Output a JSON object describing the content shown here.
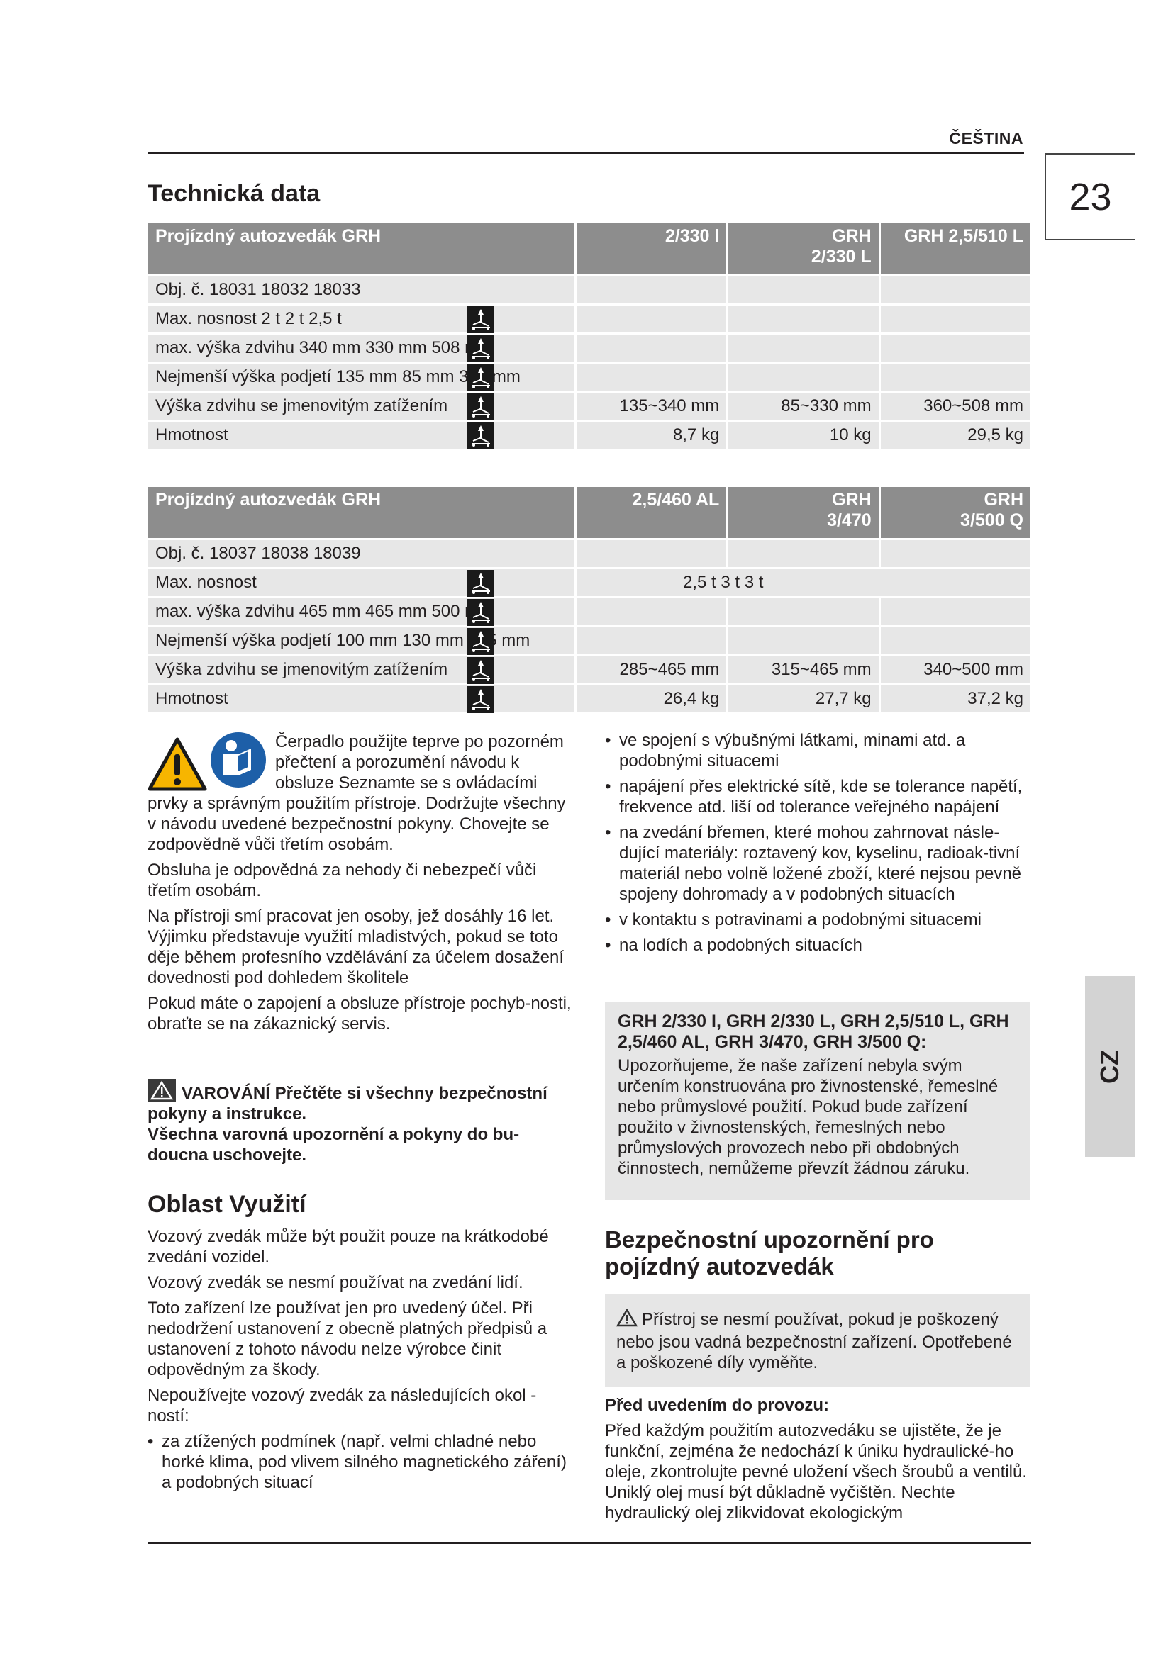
{
  "header": {
    "language": "ČEŠTINA",
    "page_number": "23",
    "side_tab": "CZ"
  },
  "title": "Technická data",
  "table1": {
    "headers": [
      [
        "Projízdný autozvedák GRH",
        ""
      ],
      [
        "",
        "2/330 l"
      ],
      [
        "GRH",
        "2/330 L"
      ],
      [
        "GRH 2,5/510 L",
        ""
      ]
    ],
    "rows": [
      {
        "label": "Obj. č. 18031 18032 18033",
        "icon": "",
        "values": [
          "",
          "",
          ""
        ]
      },
      {
        "label": "Max. nosnost 2 t 2 t 2,5 t",
        "icon": "load-capacity-icon",
        "values": [
          "",
          "",
          ""
        ]
      },
      {
        "label": "max. výška zdvihu 340 mm 330 mm 508 mm",
        "icon": "max-lift-height-icon",
        "values": [
          "",
          "",
          ""
        ]
      },
      {
        "label": "Nejmenší výška podjetí 135 mm 85 mm 360 mm",
        "icon": "min-height-icon",
        "values": [
          "",
          "",
          ""
        ]
      },
      {
        "label": "Výška zdvihu se jmenovitým zatížením",
        "icon": "lift-range-icon",
        "values": [
          "135~340 mm",
          "85~330 mm",
          "360~508 mm"
        ]
      },
      {
        "label": "Hmotnost",
        "icon": "weight-icon",
        "values": [
          "8,7 kg",
          "10 kg",
          "29,5 kg"
        ]
      }
    ]
  },
  "table2": {
    "headers": [
      [
        "Projízdný autozvedák GRH",
        ""
      ],
      [
        "",
        "2,5/460 AL"
      ],
      [
        "GRH",
        "3/470"
      ],
      [
        "GRH",
        "3/500 Q"
      ]
    ],
    "rows": [
      {
        "label": "Obj. č. 18037 18038 18039",
        "icon": "",
        "values": [
          "",
          "",
          ""
        ]
      },
      {
        "label": "Max. nosnost",
        "icon": "load-capacity-icon",
        "values": [
          "2,5 t 3 t 3 t"
        ]
      },
      {
        "label": "max. výška zdvihu 465 mm 465 mm 500 mm",
        "icon": "max-lift-height-icon",
        "values": [
          "",
          "",
          ""
        ]
      },
      {
        "label": "Nejmenší výška podjetí 100 mm 130 mm 145 mm",
        "icon": "min-height-icon",
        "values": [
          "",
          "",
          ""
        ]
      },
      {
        "label": "Výška zdvihu se jmenovitým zatížením",
        "icon": "lift-range-icon",
        "values": [
          "285~465 mm",
          "315~465 mm",
          "340~500 mm"
        ]
      },
      {
        "label": "Hmotnost",
        "icon": "weight-icon",
        "values": [
          "26,4 kg",
          "27,7 kg",
          "37,2 kg"
        ]
      }
    ]
  },
  "left": {
    "intro": "Čerpadlo použijte teprve po pozorném přečtení a porozumění návodu k obsluze Seznamte se s ovládacími prvky a správným použitím přístroje. Dodržujte všechny v návodu uvedené bezpečnostní pokyny. Chovejte se zodpovědně vůči třetím osobám.",
    "p1": "Obsluha je odpovědná za nehody či nebezpečí vůči třetím osobám.",
    "p2": "Na přístroji smí pracovat jen osoby, jež dosáhly 16 let. Výjimku představuje využití mladistvých, pokud se toto děje během profesního vzdělávání za účelem dosažení dovednosti pod dohledem školitele",
    "p3": "Pokud máte o zapojení a obsluze přístroje pochyb-nosti, obraťte se na zákaznický servis.",
    "warning_label": "VAROVÁNÍ",
    "warning_text": "Přečtěte si všechny bezpečnostní pokyny a instrukce.",
    "warning_text2": "Všechna varovná upozornění a pokyny do bu-doucna uschovejte.",
    "usage_heading": "Oblast Využití",
    "u1": "Vozový zvedák může být použit pouze na krátkodobé zvedání vozidel.",
    "u2": "Vozový zvedák se nesmí používat na zvedání lidí.",
    "u3": "Toto zařízení lze používat jen pro uvedený účel. Při nedodržení ustanovení z obecně platných předpisů a ustanovení z tohoto návodu nelze výrobce činit odpovědným za škody.",
    "u4": "Nepoužívejte vozový zvedák za následujících okol - ností:",
    "bullets": [
      "za ztížených podmínek (např. velmi chladné nebo horké klima, pod vlivem silného magnetického záření) a podobných situací"
    ]
  },
  "right": {
    "bullets": [
      "ve spojení s výbušnými látkami, minami atd. a podobnými situacemi",
      "napájení přes elektrické sítě, kde se tolerance napětí, frekvence atd. liší od tolerance veřejného napájení",
      "na zvedání břemen, které mohou zahrnovat násle-dující materiály: roztavený kov, kyselinu, radioak-tivní materiál nebo volně ložené zboží, které nejsou pevně spojeny dohromady a v podobných situacích",
      "v kontaktu s potravinami a podobnými situacemi",
      "na lodích a podobných situacích"
    ],
    "note_heading": "GRH  2/330 I, GRH  2/330 L, GRH 2,5/510 L, GRH  2,5/460 AL, GRH  3/470, GRH  3/500 Q:",
    "note_text": "Upozorňujeme, že naše zařízení nebyla svým určením konstruována pro živnostenské, řemeslné nebo průmyslové použití. Pokud bude zařízení použito v živnostenských, řemeslných nebo průmyslových provozech nebo při obdobných činnostech, nemůžeme převzít žádnou záruku.",
    "safety_heading": "Bezpečnostní upozornění pro pojízdný autozvedák",
    "safety_box": "Přístroj se nesmí používat, pokud je poškozený nebo jsou vadná bezpečnostní zařízení. Opotřebené a poškozené díly vyměňte.",
    "before_heading": "Před uvedením do provozu:",
    "before_text": "Před každým použitím autozvedáku se ujistěte, že je funkční, zejména že nedochází k úniku hydraulické-ho oleje, zkontrolujte pevné uložení všech šroubů a ventilů. Uniklý olej musí být důkladně vyčištěn. Nechte hydraulický olej zlikvidovat ekologickým"
  },
  "colors": {
    "table_header": "#8d8d8d",
    "cell": "#e7e7e7",
    "warning_yellow": "#f7b500",
    "mandatory_blue": "#1d5fa8",
    "side_tab": "#d3d3d3"
  }
}
